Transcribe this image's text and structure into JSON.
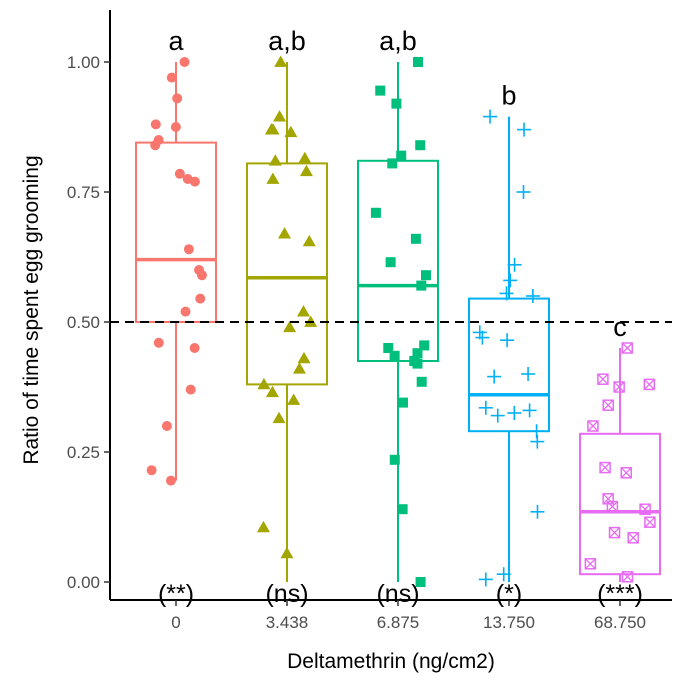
{
  "chart_data": {
    "type": "box",
    "xlabel": "Deltamethrin (ng/cm2)",
    "ylabel": "Ratio of time spent egg grooming",
    "ylim": [
      0,
      1.05
    ],
    "y_ticks": [
      "0.00",
      "0.25",
      "0.50",
      "0.75",
      "1.00"
    ],
    "y_tick_values": [
      0,
      0.25,
      0.5,
      0.75,
      1.0
    ],
    "reference_line": 0.5,
    "grid": false,
    "categories": [
      "0",
      "3.438",
      "6.875",
      "13.750",
      "68.750"
    ],
    "groups": [
      {
        "category": "0",
        "color": "#F8766D",
        "marker": "circle",
        "q1": 0.5,
        "median": 0.62,
        "q3": 0.845,
        "whisker_low": 0.195,
        "whisker_high": 1.0,
        "letter": "a",
        "significance": "(**)",
        "points": [
          1.0,
          0.97,
          0.93,
          0.88,
          0.875,
          0.85,
          0.84,
          0.785,
          0.775,
          0.77,
          0.64,
          0.6,
          0.59,
          0.545,
          0.52,
          0.46,
          0.45,
          0.37,
          0.3,
          0.215,
          0.195
        ]
      },
      {
        "category": "3.438",
        "color": "#A3A500",
        "marker": "triangle",
        "q1": 0.38,
        "median": 0.585,
        "q3": 0.805,
        "whisker_low": 0.0,
        "whisker_high": 1.0,
        "letter": "a,b",
        "significance": "(ns)",
        "points": [
          1.0,
          0.895,
          0.87,
          0.87,
          0.865,
          0.815,
          0.81,
          0.79,
          0.775,
          0.67,
          0.655,
          0.52,
          0.5,
          0.49,
          0.43,
          0.41,
          0.38,
          0.365,
          0.35,
          0.315,
          0.105,
          0.055
        ]
      },
      {
        "category": "6.875",
        "color": "#00BF7D",
        "marker": "square",
        "q1": 0.425,
        "median": 0.57,
        "q3": 0.81,
        "whisker_low": 0.0,
        "whisker_high": 1.0,
        "letter": "a,b",
        "significance": "(ns)",
        "points": [
          1.0,
          0.945,
          0.92,
          0.84,
          0.82,
          0.805,
          0.71,
          0.66,
          0.615,
          0.59,
          0.57,
          0.455,
          0.45,
          0.44,
          0.435,
          0.425,
          0.42,
          0.385,
          0.345,
          0.235,
          0.14,
          0.0
        ]
      },
      {
        "category": "13.750",
        "color": "#00B0F6",
        "marker": "plus",
        "q1": 0.29,
        "median": 0.36,
        "q3": 0.545,
        "whisker_low": 0.0,
        "whisker_high": 0.895,
        "letter": "b",
        "significance": "(*)",
        "points": [
          0.895,
          0.87,
          0.75,
          0.61,
          0.58,
          0.555,
          0.55,
          0.48,
          0.47,
          0.465,
          0.4,
          0.395,
          0.335,
          0.33,
          0.325,
          0.32,
          0.29,
          0.27,
          0.135,
          0.015,
          0.005
        ]
      },
      {
        "category": "68.750",
        "color": "#E76BF3",
        "marker": "square-x",
        "q1": 0.015,
        "median": 0.135,
        "q3": 0.285,
        "whisker_low": 0.0,
        "whisker_high": 0.45,
        "letter": "c",
        "significance": "(***)",
        "points": [
          0.45,
          0.39,
          0.38,
          0.375,
          0.34,
          0.3,
          0.22,
          0.21,
          0.16,
          0.145,
          0.14,
          0.115,
          0.095,
          0.085,
          0.035,
          0.01
        ]
      }
    ]
  }
}
